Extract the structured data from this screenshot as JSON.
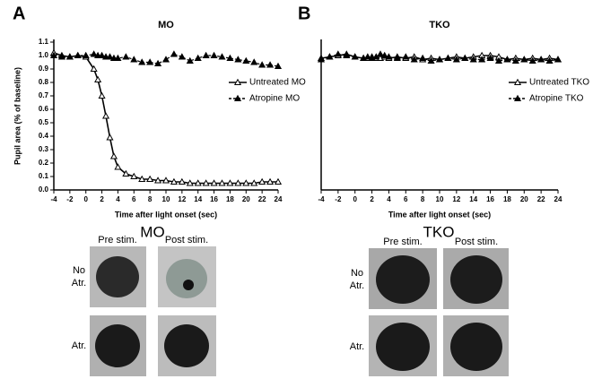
{
  "chart_data": [
    {
      "type": "line",
      "title": "MO",
      "panel": "A",
      "y_label": "Pupil area (% of baseline)",
      "x_label": "Time after light onset (sec)",
      "x": [
        -4,
        -3,
        -2,
        -1,
        0,
        1,
        1.5,
        2,
        2.5,
        3,
        3.5,
        4,
        5,
        6,
        7,
        8,
        9,
        10,
        11,
        12,
        13,
        14,
        15,
        16,
        17,
        18,
        19,
        20,
        21,
        22,
        23,
        24
      ],
      "xlim": [
        -4,
        24
      ],
      "xticks": [
        -4,
        -2,
        0,
        2,
        4,
        6,
        8,
        10,
        12,
        14,
        16,
        18,
        20,
        22,
        24
      ],
      "ylim": [
        0,
        1.1
      ],
      "yticks": [
        {
          "value": 0,
          "label": "0.0"
        },
        0.1,
        0.2,
        0.3,
        0.4,
        0.5,
        0.6,
        0.7,
        0.8,
        0.9,
        {
          "value": 1,
          "label": "1.0"
        },
        1.1
      ],
      "legend": "right",
      "series": [
        {
          "name": "Untreated MO",
          "color": "#000000",
          "marker": "open-triangle",
          "dash": false,
          "values": [
            1.02,
            1.0,
            0.99,
            1.0,
            0.99,
            0.9,
            0.82,
            0.7,
            0.55,
            0.39,
            0.25,
            0.17,
            0.12,
            0.1,
            0.08,
            0.08,
            0.07,
            0.07,
            0.06,
            0.06,
            0.05,
            0.05,
            0.05,
            0.05,
            0.05,
            0.05,
            0.05,
            0.05,
            0.05,
            0.06,
            0.06,
            0.06
          ]
        },
        {
          "name": "Atropine MO",
          "color": "#000000",
          "marker": "filled-triangle",
          "dash": true,
          "values": [
            1.0,
            0.99,
            0.99,
            1.0,
            1.0,
            1.01,
            1.0,
            1.0,
            0.99,
            0.99,
            0.98,
            0.98,
            0.99,
            0.97,
            0.95,
            0.95,
            0.94,
            0.97,
            1.01,
            0.99,
            0.96,
            0.98,
            1.0,
            1.0,
            0.99,
            0.98,
            0.97,
            0.96,
            0.95,
            0.93,
            0.93,
            0.92
          ]
        }
      ]
    },
    {
      "type": "line",
      "title": "TKO",
      "panel": "B",
      "x_label": "Time after light onset (sec)",
      "x": [
        -4,
        -3,
        -2,
        -1,
        0,
        1,
        1.5,
        2,
        2.5,
        3,
        3.5,
        4,
        5,
        6,
        7,
        8,
        9,
        10,
        11,
        12,
        13,
        14,
        15,
        16,
        17,
        18,
        19,
        20,
        21,
        22,
        23,
        24
      ],
      "xlim": [
        -4,
        24
      ],
      "xticks": [
        -4,
        -2,
        0,
        2,
        4,
        6,
        8,
        10,
        12,
        14,
        16,
        18,
        20,
        22,
        24
      ],
      "ylim": [
        0,
        1.1
      ],
      "legend": "right",
      "series": [
        {
          "name": "Untreated TKO",
          "color": "#000000",
          "marker": "open-triangle",
          "dash": false,
          "values": [
            0.98,
            0.99,
            1.0,
            1.01,
            0.99,
            0.98,
            0.98,
            0.99,
            0.98,
            0.98,
            0.99,
            0.98,
            0.99,
            0.98,
            0.99,
            0.97,
            0.98,
            0.97,
            0.98,
            0.99,
            0.98,
            0.99,
            1.0,
            1.0,
            0.99,
            0.97,
            0.98,
            0.97,
            0.98,
            0.97,
            0.98,
            0.97
          ]
        },
        {
          "name": "Atropine TKO",
          "color": "#000000",
          "marker": "filled-triangle",
          "dash": true,
          "values": [
            0.97,
            0.99,
            1.01,
            1.0,
            0.99,
            0.98,
            0.99,
            0.98,
            0.99,
            1.01,
            1.0,
            0.99,
            0.98,
            0.99,
            0.97,
            0.98,
            0.96,
            0.97,
            0.98,
            0.97,
            0.98,
            0.97,
            0.97,
            0.98,
            0.96,
            0.97,
            0.96,
            0.97,
            0.96,
            0.97,
            0.96,
            0.97
          ]
        }
      ]
    }
  ],
  "photos": [
    {
      "title": "MO",
      "columns": [
        "Pre stim.",
        "Post stim."
      ],
      "rows": [
        "No\nAtr.",
        "Atr."
      ]
    },
    {
      "title": "TKO",
      "columns": [
        "Pre stim.",
        "Post stim."
      ],
      "rows": [
        "No\nAtr.",
        "Atr."
      ]
    }
  ]
}
